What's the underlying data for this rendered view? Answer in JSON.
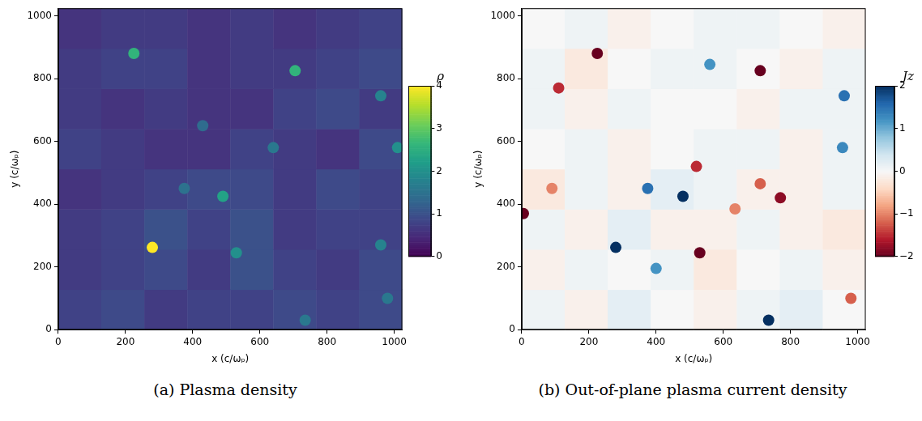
{
  "chart_data": [
    {
      "type": "heatmap",
      "title": "(a) Plasma density",
      "x_label": "x (c/ωₚ)",
      "y_label": "y (c/ωₚ)",
      "xlim": [
        0,
        1024
      ],
      "ylim": [
        0,
        1024
      ],
      "xticks": [
        0,
        200,
        400,
        600,
        800,
        1000
      ],
      "yticks": [
        0,
        200,
        400,
        600,
        800,
        1000
      ],
      "cells": {
        "x_edges": [
          0,
          128,
          256,
          384,
          512,
          640,
          768,
          896,
          1024
        ],
        "y_edges": [
          0,
          128,
          256,
          384,
          512,
          640,
          768,
          896,
          1024
        ],
        "values": [
          [
            0.8,
            0.9,
            0.7,
            0.8,
            0.8,
            0.9,
            0.8,
            0.9
          ],
          [
            0.7,
            0.8,
            0.9,
            0.7,
            1.0,
            0.8,
            0.7,
            0.9
          ],
          [
            0.7,
            0.8,
            1.0,
            0.8,
            1.0,
            0.7,
            0.8,
            0.8
          ],
          [
            0.6,
            0.7,
            0.8,
            0.9,
            0.9,
            0.7,
            0.9,
            0.8
          ],
          [
            0.8,
            0.7,
            0.6,
            0.6,
            0.8,
            0.7,
            0.6,
            0.9
          ],
          [
            0.7,
            0.6,
            0.7,
            0.6,
            0.6,
            0.8,
            0.9,
            0.7
          ],
          [
            0.7,
            0.8,
            0.8,
            0.6,
            0.7,
            0.7,
            0.8,
            0.9
          ],
          [
            0.6,
            0.7,
            0.7,
            0.6,
            0.7,
            0.6,
            0.7,
            0.8
          ]
        ]
      },
      "peaks": {
        "x": [
          280,
          225,
          705,
          490,
          530,
          1010,
          640,
          375,
          960,
          430,
          735,
          980,
          960
        ],
        "y": [
          262,
          880,
          825,
          425,
          245,
          580,
          580,
          450,
          745,
          650,
          30,
          100,
          270
        ],
        "values": [
          4,
          2.6,
          2.6,
          2.3,
          2.0,
          2.0,
          1.6,
          1.5,
          1.8,
          1.4,
          1.6,
          1.6,
          1.8
        ]
      },
      "colorbar": {
        "label": "ρ",
        "range": [
          0,
          4
        ],
        "ticks": [
          0,
          1,
          2,
          3,
          4
        ]
      }
    },
    {
      "type": "heatmap",
      "title": "(b) Out-of-plane plasma current density",
      "x_label": "x (c/ωₚ)",
      "y_label": "y (c/ωₚ)",
      "xlim": [
        0,
        1024
      ],
      "ylim": [
        0,
        1024
      ],
      "xticks": [
        0,
        200,
        400,
        600,
        800,
        1000
      ],
      "yticks": [
        0,
        200,
        400,
        600,
        800,
        1000
      ],
      "cells": {
        "x_edges": [
          0,
          128,
          256,
          384,
          512,
          640,
          768,
          896,
          1024
        ],
        "y_edges": [
          0,
          128,
          256,
          384,
          512,
          640,
          768,
          896,
          1024
        ],
        "values": [
          [
            0.1,
            -0.1,
            0.2,
            0,
            -0.1,
            0.1,
            0.2,
            0
          ],
          [
            -0.1,
            0.1,
            0,
            0.1,
            -0.2,
            0,
            0.1,
            -0.1
          ],
          [
            0.1,
            -0.1,
            0.2,
            -0.1,
            -0.1,
            0.1,
            -0.1,
            -0.2
          ],
          [
            -0.2,
            0.1,
            -0.1,
            0.2,
            0.1,
            -0.1,
            -0.1,
            0.1
          ],
          [
            0,
            0.1,
            -0.1,
            0,
            0.1,
            0.1,
            -0.1,
            0.1
          ],
          [
            0.1,
            -0.1,
            0.1,
            0,
            0,
            -0.1,
            0.1,
            0.1
          ],
          [
            0.1,
            -0.2,
            0,
            0.1,
            0.1,
            0,
            -0.1,
            0.1
          ],
          [
            0,
            0.1,
            -0.1,
            0,
            0.1,
            0.1,
            0,
            -0.1
          ]
        ]
      },
      "peaks": {
        "x": [
          280,
          530,
          225,
          710,
          480,
          375,
          735,
          960,
          5,
          520,
          635,
          770,
          710,
          955,
          980,
          110,
          560,
          400,
          90
        ],
        "y": [
          262,
          245,
          880,
          825,
          425,
          450,
          30,
          745,
          370,
          520,
          385,
          420,
          465,
          580,
          100,
          770,
          845,
          195,
          450
        ],
        "values": [
          2,
          -2,
          -2,
          -2,
          2,
          1.5,
          2,
          1.5,
          -2,
          -1.5,
          -1,
          -1.8,
          -1.2,
          1.3,
          -1.2,
          -1.5,
          1.2,
          1.2,
          -1
        ]
      },
      "colorbar": {
        "label": "Jz",
        "range": [
          -2,
          2
        ],
        "ticks": [
          {
            "value": -2,
            "label": "−2"
          },
          {
            "value": -1,
            "label": "−1"
          },
          0,
          1,
          2
        ]
      }
    }
  ]
}
